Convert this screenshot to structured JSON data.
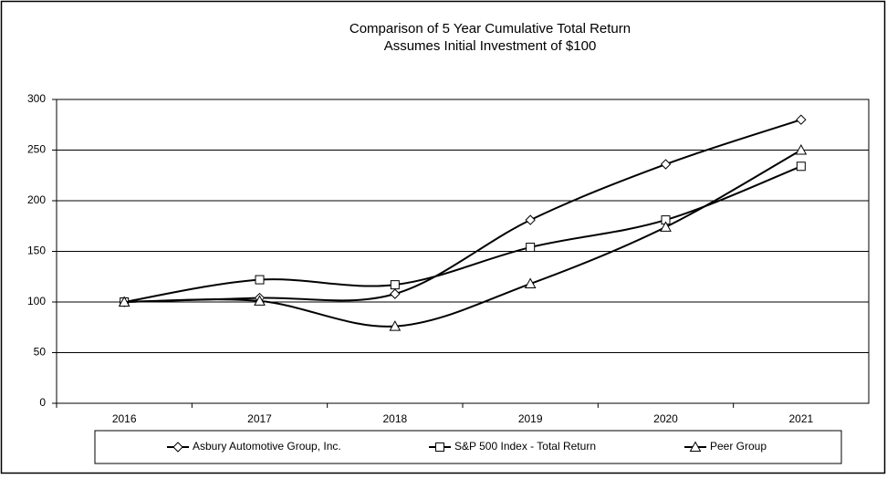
{
  "chart_data": {
    "type": "line",
    "title": "Comparison of 5 Year Cumulative Total Return",
    "subtitle": "Assumes Initial Investment of $100",
    "categories": [
      "2016",
      "2017",
      "2018",
      "2019",
      "2020",
      "2021"
    ],
    "series": [
      {
        "name": "Asbury Automotive Group, Inc.",
        "color": "#000000",
        "marker": "diamond",
        "values": [
          100,
          104,
          108,
          181,
          236,
          280
        ]
      },
      {
        "name": "S&P 500 Index - Total Return",
        "color": "#000000",
        "marker": "square",
        "values": [
          100,
          122,
          117,
          154,
          181,
          234
        ]
      },
      {
        "name": "Peer Group",
        "color": "#000000",
        "marker": "triangle",
        "values": [
          100,
          101,
          76,
          118,
          174,
          250
        ]
      }
    ],
    "ylim": [
      0,
      300
    ],
    "yticks": [
      0,
      50,
      100,
      150,
      200,
      250,
      300
    ],
    "grid": true,
    "smooth": true,
    "legend": "bottom"
  }
}
